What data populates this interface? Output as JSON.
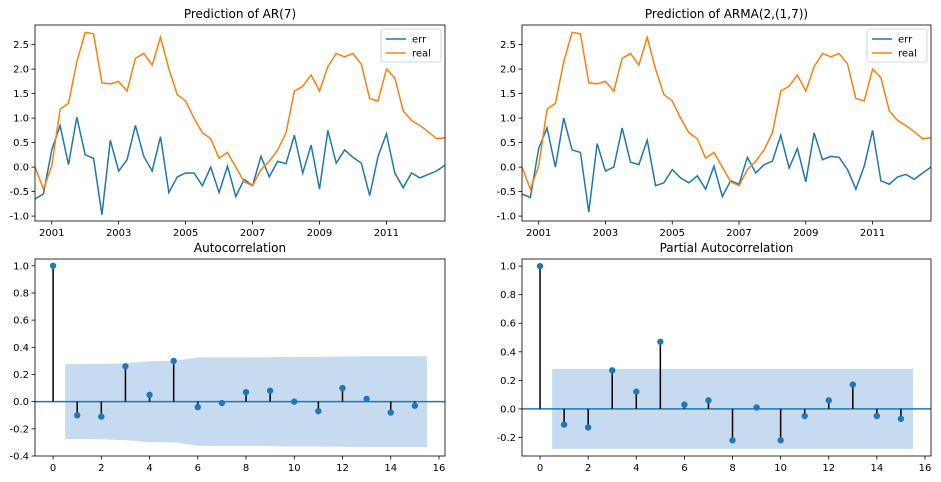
{
  "chart_data": [
    {
      "type": "line",
      "title": "Prediction of AR(7)",
      "x_start": 2000.5,
      "x_end": 2012.75,
      "x_step": 0.25,
      "xlim": [
        2000.5,
        2012.75
      ],
      "ylim": [
        -1.1,
        2.9
      ],
      "xticks": [
        2001,
        2003,
        2005,
        2007,
        2009,
        2011
      ],
      "yticks": [
        -1.0,
        -0.5,
        0.0,
        0.5,
        1.0,
        1.5,
        2.0,
        2.5
      ],
      "legend": "top-right",
      "series": [
        {
          "name": "err",
          "color": "#1f77b4",
          "values": [
            -0.65,
            -0.55,
            0.35,
            0.85,
            0.05,
            1.02,
            0.25,
            0.18,
            -0.97,
            0.55,
            -0.08,
            0.15,
            0.85,
            0.22,
            -0.08,
            0.62,
            -0.52,
            -0.2,
            -0.12,
            -0.12,
            -0.38,
            0.0,
            -0.52,
            0.02,
            -0.6,
            -0.25,
            -0.38,
            0.22,
            -0.2,
            0.12,
            0.07,
            0.65,
            -0.12,
            0.45,
            -0.45,
            0.75,
            0.08,
            0.35,
            0.2,
            0.08,
            -0.58,
            0.22,
            0.68,
            -0.12,
            -0.42,
            -0.12,
            -0.22,
            -0.15,
            -0.08,
            0.04
          ]
        },
        {
          "name": "real",
          "color": "#ff7f0e",
          "values": [
            0.0,
            -0.45,
            0.02,
            1.18,
            1.3,
            2.15,
            2.75,
            2.72,
            1.72,
            1.7,
            1.75,
            1.55,
            2.22,
            2.32,
            2.08,
            2.65,
            2.0,
            1.48,
            1.35,
            1.0,
            0.7,
            0.58,
            0.18,
            0.3,
            0.0,
            -0.3,
            -0.38,
            -0.05,
            0.12,
            0.35,
            0.7,
            1.55,
            1.65,
            1.88,
            1.55,
            2.05,
            2.32,
            2.25,
            2.32,
            2.1,
            1.4,
            1.35,
            2.0,
            1.82,
            1.15,
            0.95,
            0.85,
            0.72,
            0.58,
            0.6
          ]
        }
      ]
    },
    {
      "type": "line",
      "title": "Prediction of ARMA(2,(1,7))",
      "x_start": 2000.5,
      "x_end": 2012.75,
      "x_step": 0.25,
      "xlim": [
        2000.5,
        2012.75
      ],
      "ylim": [
        -1.1,
        2.9
      ],
      "xticks": [
        2001,
        2003,
        2005,
        2007,
        2009,
        2011
      ],
      "yticks": [
        -1.0,
        -0.5,
        0.0,
        0.5,
        1.0,
        1.5,
        2.0,
        2.5
      ],
      "legend": "top-right",
      "series": [
        {
          "name": "err",
          "color": "#1f77b4",
          "values": [
            -0.55,
            -0.62,
            0.38,
            0.8,
            0.0,
            1.0,
            0.35,
            0.3,
            -0.92,
            0.48,
            -0.08,
            0.0,
            0.8,
            0.1,
            0.05,
            0.55,
            -0.38,
            -0.32,
            -0.05,
            -0.22,
            -0.32,
            -0.18,
            -0.45,
            0.02,
            -0.6,
            -0.28,
            -0.35,
            0.2,
            -0.12,
            0.05,
            0.12,
            0.65,
            -0.02,
            0.38,
            -0.3,
            0.7,
            0.15,
            0.22,
            0.2,
            -0.05,
            -0.45,
            0.02,
            0.75,
            -0.28,
            -0.35,
            -0.2,
            -0.15,
            -0.25,
            -0.12,
            0.0
          ]
        },
        {
          "name": "real",
          "color": "#ff7f0e",
          "values": [
            0.0,
            -0.45,
            0.02,
            1.18,
            1.3,
            2.15,
            2.75,
            2.72,
            1.72,
            1.7,
            1.75,
            1.55,
            2.22,
            2.32,
            2.08,
            2.65,
            2.0,
            1.48,
            1.35,
            1.0,
            0.7,
            0.58,
            0.18,
            0.3,
            0.0,
            -0.3,
            -0.38,
            -0.05,
            0.12,
            0.35,
            0.7,
            1.55,
            1.65,
            1.88,
            1.55,
            2.05,
            2.32,
            2.25,
            2.32,
            2.1,
            1.4,
            1.35,
            2.0,
            1.82,
            1.15,
            0.95,
            0.85,
            0.72,
            0.58,
            0.6
          ]
        }
      ]
    },
    {
      "type": "stem",
      "title": "Autocorrelation",
      "lags": [
        0,
        1,
        2,
        3,
        4,
        5,
        6,
        7,
        8,
        9,
        10,
        11,
        12,
        13,
        14,
        15
      ],
      "values": [
        1.0,
        -0.1,
        -0.11,
        0.26,
        0.05,
        0.3,
        -0.04,
        -0.01,
        0.07,
        0.08,
        0.0,
        -0.07,
        0.1,
        0.02,
        -0.08,
        -0.03
      ],
      "confidence_band": {
        "x": [
          0.5,
          1,
          2,
          3,
          4,
          5,
          6,
          7,
          8,
          9,
          10,
          11,
          12,
          13,
          14,
          15,
          15.5
        ],
        "upper": [
          0.275,
          0.276,
          0.277,
          0.283,
          0.298,
          0.3,
          0.325,
          0.326,
          0.326,
          0.327,
          0.33,
          0.33,
          0.332,
          0.334,
          0.334,
          0.334,
          0.334
        ],
        "lower": [
          -0.275,
          -0.276,
          -0.277,
          -0.283,
          -0.298,
          -0.3,
          -0.325,
          -0.326,
          -0.326,
          -0.327,
          -0.33,
          -0.33,
          -0.332,
          -0.334,
          -0.334,
          -0.334,
          -0.334
        ],
        "color": "#c6dbef"
      },
      "xlim": [
        -0.75,
        16.25
      ],
      "ylim": [
        -0.4,
        1.05
      ],
      "xticks": [
        0,
        2,
        4,
        6,
        8,
        10,
        12,
        14,
        16
      ],
      "yticks": [
        -0.4,
        -0.2,
        0.0,
        0.2,
        0.4,
        0.6,
        0.8,
        1.0
      ],
      "marker_color": "#1f77b4"
    },
    {
      "type": "stem",
      "title": "Partial Autocorrelation",
      "lags": [
        0,
        1,
        2,
        3,
        4,
        5,
        6,
        7,
        8,
        9,
        10,
        11,
        12,
        13,
        14,
        15
      ],
      "values": [
        1.0,
        -0.11,
        -0.13,
        0.27,
        0.12,
        0.47,
        0.03,
        0.06,
        -0.22,
        0.01,
        -0.22,
        -0.05,
        0.06,
        0.17,
        -0.05,
        -0.07
      ],
      "confidence_band": {
        "x": [
          0.5,
          15.5
        ],
        "upper": [
          0.28,
          0.28
        ],
        "lower": [
          -0.28,
          -0.28
        ],
        "color": "#c6dbef"
      },
      "xlim": [
        -0.75,
        16.25
      ],
      "ylim": [
        -0.33,
        1.05
      ],
      "xticks": [
        0,
        2,
        4,
        6,
        8,
        10,
        12,
        14,
        16
      ],
      "yticks": [
        -0.2,
        0.0,
        0.2,
        0.4,
        0.6,
        0.8,
        1.0
      ],
      "marker_color": "#1f77b4"
    }
  ]
}
